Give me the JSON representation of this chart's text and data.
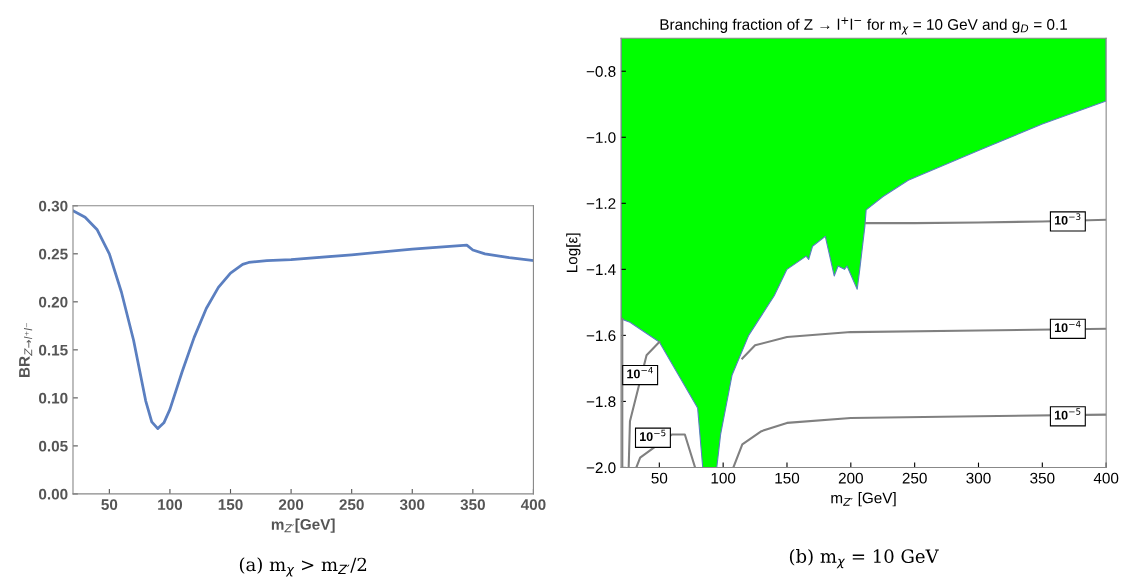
{
  "chart_data": [
    {
      "type": "line",
      "xlabel": "m$_{Z′}$[GeV]",
      "ylabel": "BR$_{Z→l⁺l⁻}$",
      "xlim": [
        20,
        400
      ],
      "ylim": [
        0,
        0.3
      ],
      "xticks": [
        50,
        100,
        150,
        200,
        250,
        300,
        350,
        400
      ],
      "yticks": [
        {
          "value": 0,
          "label": "0.00"
        },
        {
          "value": 0.05,
          "label": "0.05"
        },
        {
          "value": 0.1,
          "label": "0.10"
        },
        {
          "value": 0.15,
          "label": "0.15"
        },
        {
          "value": 0.2,
          "label": "0.20"
        },
        {
          "value": 0.25,
          "label": "0.25"
        },
        {
          "value": 0.3,
          "label": "0.30"
        }
      ],
      "grid": false,
      "x": [
        20,
        30,
        40,
        50,
        60,
        70,
        80,
        85,
        90,
        95,
        100,
        110,
        120,
        130,
        140,
        150,
        160,
        165,
        180,
        200,
        250,
        300,
        345,
        350,
        360,
        380,
        400
      ],
      "series": [
        {
          "color": "#5b7fc0",
          "values": [
            0.295,
            0.288,
            0.275,
            0.25,
            0.21,
            0.16,
            0.097,
            0.075,
            0.068,
            0.074,
            0.088,
            0.127,
            0.163,
            0.193,
            0.215,
            0.23,
            0.239,
            0.241,
            0.243,
            0.244,
            0.249,
            0.255,
            0.259,
            0.254,
            0.25,
            0.246,
            0.243
          ]
        }
      ],
      "annotations": [
        "(a) m$_{χ}$ > m$_{Z′}$/2"
      ]
    },
    {
      "type": "line",
      "title": "Branching fraction of Z → l$^{+}$l$^{−}$ for m$_{χ}$ = 10 GeV and g$_{D}$ = 0.1",
      "xlabel": "m$_{Z′}$ [GeV]",
      "ylabel": "Log[ε]",
      "xlim": [
        20,
        400
      ],
      "ylim": [
        -2.0,
        -0.7
      ],
      "xticks": [
        50,
        100,
        150,
        200,
        250,
        300,
        350,
        400
      ],
      "yticks": [
        {
          "value": -2.0,
          "label": "−2.0"
        },
        {
          "value": -1.8,
          "label": "−1.8"
        },
        {
          "value": -1.6,
          "label": "−1.6"
        },
        {
          "value": -1.4,
          "label": "−1.4"
        },
        {
          "value": -1.2,
          "label": "−1.2"
        },
        {
          "value": -1.0,
          "label": "−1.0"
        },
        {
          "value": -0.8,
          "label": "−0.8"
        }
      ],
      "grid": false,
      "series": [
        {
          "type": "area",
          "color": "#00ff00",
          "x": [
            20,
            27,
            50,
            65,
            80,
            84,
            95,
            98,
            107,
            120,
            140,
            150,
            165,
            167,
            170,
            180,
            187,
            190,
            195,
            197,
            205,
            207,
            211,
            212,
            225,
            245,
            300,
            350,
            400
          ],
          "values": [
            -1.55,
            -1.56,
            -1.62,
            -1.72,
            -1.82,
            -2.0,
            -2.0,
            -1.9,
            -1.72,
            -1.6,
            -1.48,
            -1.4,
            -1.36,
            -1.37,
            -1.33,
            -1.3,
            -1.42,
            -1.39,
            -1.4,
            -1.39,
            -1.46,
            -1.4,
            -1.27,
            -1.22,
            -1.18,
            -1.13,
            -1.04,
            -0.96,
            -0.89
          ]
        },
        {
          "color": "#808080",
          "x": [
            212,
            250,
            300,
            350,
            400
          ],
          "values": [
            -1.26,
            -1.26,
            -1.258,
            -1.255,
            -1.25
          ]
        },
        {
          "color": "#808080",
          "x": [
            115,
            125,
            150,
            200,
            300,
            400
          ],
          "values": [
            -1.67,
            -1.63,
            -1.605,
            -1.59,
            -1.585,
            -1.58
          ]
        },
        {
          "color": "#808080",
          "x": [
            108,
            115,
            130,
            150,
            200,
            300,
            400
          ],
          "values": [
            -2.0,
            -1.93,
            -1.89,
            -1.865,
            -1.85,
            -1.845,
            -1.84
          ]
        },
        {
          "color": "#808080",
          "x": [
            26,
            27,
            40,
            50
          ],
          "values": [
            -2.0,
            -1.86,
            -1.66,
            -1.62
          ]
        },
        {
          "color": "#808080",
          "x": [
            32,
            35,
            60,
            70,
            78
          ],
          "values": [
            -2.0,
            -1.97,
            -1.9,
            -1.9,
            -2.0
          ]
        },
        {
          "color": "#808080",
          "x": [
            21,
            21
          ],
          "values": [
            -2.0,
            -1.55
          ]
        }
      ],
      "annotations": [
        {
          "text": "10$^{−3}$",
          "x": 370,
          "y": -1.255
        },
        {
          "text": "10$^{−4}$",
          "x": 370,
          "y": -1.58
        },
        {
          "text": "10$^{−5}$",
          "x": 370,
          "y": -1.845
        },
        {
          "text": "10$^{−4}$",
          "x": 35,
          "y": -1.72
        },
        {
          "text": "10$^{−5}$",
          "x": 45,
          "y": -1.91
        },
        "(b) m$_{χ}$ = 10 GeV"
      ]
    }
  ]
}
